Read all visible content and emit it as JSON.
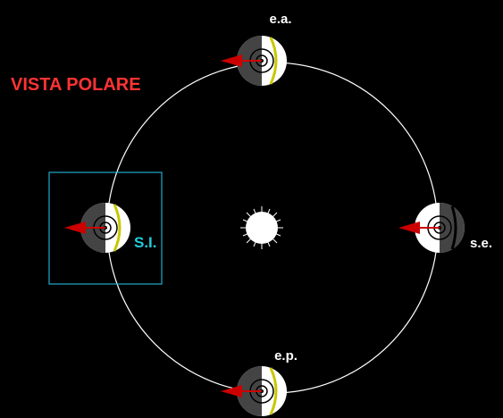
{
  "title": "VISTA POLARE",
  "labels": {
    "top": "e.a.",
    "left": "S.I.",
    "right": "s.e.",
    "bottom": "e.p."
  }
}
